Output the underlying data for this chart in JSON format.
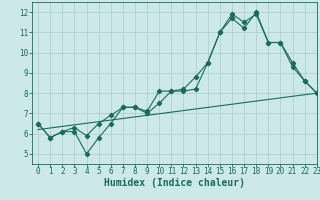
{
  "xlabel": "Humidex (Indice chaleur)",
  "xlim": [
    -0.5,
    23
  ],
  "ylim": [
    4.5,
    12.5
  ],
  "xticks": [
    0,
    1,
    2,
    3,
    4,
    5,
    6,
    7,
    8,
    9,
    10,
    11,
    12,
    13,
    14,
    15,
    16,
    17,
    18,
    19,
    20,
    21,
    22,
    23
  ],
  "yticks": [
    5,
    6,
    7,
    8,
    9,
    10,
    11,
    12
  ],
  "bg_color": "#cce8e8",
  "grid_color": "#b0d0d0",
  "line_color": "#1a6b5a",
  "line1_x": [
    0,
    1,
    2,
    3,
    4,
    5,
    6,
    7,
    8,
    9,
    10,
    11,
    12,
    13,
    14,
    15,
    16,
    17,
    18,
    19,
    20,
    21,
    22,
    23
  ],
  "line1_y": [
    6.5,
    5.8,
    6.1,
    6.1,
    5.0,
    5.8,
    6.5,
    7.3,
    7.3,
    7.0,
    7.5,
    8.1,
    8.1,
    8.2,
    9.5,
    11.0,
    11.9,
    11.5,
    11.9,
    10.5,
    10.5,
    9.5,
    8.6,
    8.0
  ],
  "line2_x": [
    0,
    1,
    2,
    3,
    4,
    5,
    6,
    7,
    8,
    9,
    10,
    11,
    12,
    13,
    14,
    15,
    16,
    17,
    18,
    19,
    20,
    21,
    22,
    23
  ],
  "line2_y": [
    6.5,
    5.8,
    6.1,
    6.3,
    5.9,
    6.5,
    6.9,
    7.3,
    7.3,
    7.1,
    8.1,
    8.1,
    8.2,
    8.8,
    9.5,
    11.0,
    11.7,
    11.2,
    12.0,
    10.5,
    10.5,
    9.3,
    8.6,
    8.0
  ],
  "trend_x": [
    0,
    23
  ],
  "trend_y": [
    6.2,
    8.0
  ],
  "tick_fontsize": 5.5,
  "xlabel_fontsize": 7
}
